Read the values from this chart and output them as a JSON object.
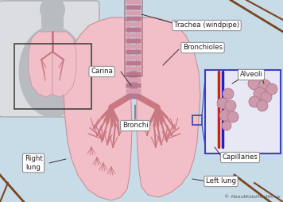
{
  "bg_color": "#c8dce8",
  "copyright": "© AboutKidsHealth.ca",
  "labels": {
    "trachea": "Trachea (windpipe)",
    "bronchioles": "Bronchioles",
    "alveoli": "Alveoli",
    "carina": "Carina",
    "bronchi": "Bronchi",
    "right_lung": "Right\nlung",
    "left_lung": "Left lung",
    "capillaries": "Capillaries"
  },
  "lung_pink": "#f2bfc8",
  "lung_edge": "#c8909a",
  "lung_vein": "#cc8890",
  "trachea_light": "#d4a0b0",
  "trachea_dark": "#b87890",
  "trachea_outline": "#906070",
  "bronchi_color": "#cc8890",
  "inset_bg": "#c8ccd0",
  "inset_border": "#888888",
  "inner_box_color": "#555555",
  "alveoli_box_border": "#4040bb",
  "alveoli_bg": "#e8e8f5",
  "alveoli_pink": "#cc9aaa",
  "alveoli_edge": "#aa7080",
  "vessel_red": "#cc2020",
  "vessel_blue": "#2020cc",
  "label_bg": "#ffffff",
  "label_edge": "#888888",
  "text_color": "#222222",
  "line_color": "#333333",
  "tree_color": "#c87880",
  "brown_line": "#7a4520"
}
